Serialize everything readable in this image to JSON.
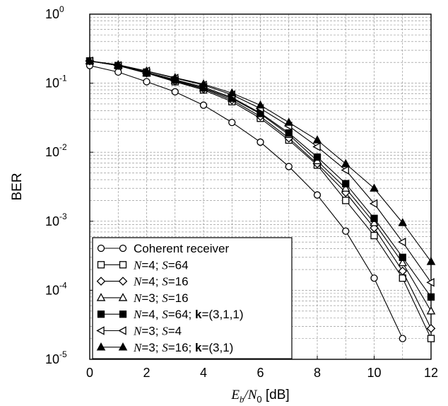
{
  "chart_data": {
    "type": "line",
    "title": "",
    "xlabel": {
      "main": "E",
      "sub1": "b",
      "sep": "/N",
      "sub2": "0",
      "unit": " [dB]"
    },
    "ylabel": "BER",
    "xlim": [
      0,
      12
    ],
    "ylim": [
      1e-05,
      1
    ],
    "yscale": "log",
    "grid": true,
    "legend_position": "bottom-left",
    "x_ticks": [
      "0",
      "2",
      "4",
      "6",
      "8",
      "10",
      "12"
    ],
    "y_ticks": [
      {
        "base": "10",
        "exp": "0"
      },
      {
        "base": "10",
        "exp": "-1"
      },
      {
        "base": "10",
        "exp": "-2"
      },
      {
        "base": "10",
        "exp": "-3"
      },
      {
        "base": "10",
        "exp": "-4"
      },
      {
        "base": "10",
        "exp": "-5"
      }
    ],
    "series": [
      {
        "name": [
          {
            "t": "Coherent receiver",
            "s": "n"
          }
        ],
        "marker": "circle",
        "fill": "open",
        "x": [
          0,
          1,
          2,
          3,
          4,
          5,
          6,
          7,
          8,
          9,
          10,
          11
        ],
        "values": [
          0.18,
          0.145,
          0.105,
          0.075,
          0.048,
          0.027,
          0.014,
          0.0062,
          0.0024,
          0.00072,
          0.00015,
          2e-05
        ]
      },
      {
        "name": [
          {
            "t": "N",
            "s": "i"
          },
          {
            "t": "=4; ",
            "s": "n"
          },
          {
            "t": "S",
            "s": "i"
          },
          {
            "t": "=64",
            "s": "n"
          }
        ],
        "marker": "square",
        "fill": "open",
        "x": [
          0,
          1,
          2,
          3,
          4,
          5,
          6,
          7,
          8,
          9,
          10,
          11,
          12
        ],
        "values": [
          0.21,
          0.18,
          0.14,
          0.105,
          0.08,
          0.054,
          0.031,
          0.015,
          0.0065,
          0.002,
          0.00062,
          0.00015,
          2e-05
        ]
      },
      {
        "name": [
          {
            "t": "N",
            "s": "i"
          },
          {
            "t": "=4; ",
            "s": "n"
          },
          {
            "t": "S",
            "s": "i"
          },
          {
            "t": "=16",
            "s": "n"
          }
        ],
        "marker": "diamond",
        "fill": "open",
        "x": [
          0,
          1,
          2,
          3,
          4,
          5,
          6,
          7,
          8,
          9,
          10,
          11,
          12
        ],
        "values": [
          0.21,
          0.18,
          0.14,
          0.107,
          0.083,
          0.057,
          0.033,
          0.016,
          0.0068,
          0.0026,
          0.0008,
          0.00019,
          2.8e-05
        ]
      },
      {
        "name": [
          {
            "t": "N",
            "s": "i"
          },
          {
            "t": "=3; ",
            "s": "n"
          },
          {
            "t": "S",
            "s": "i"
          },
          {
            "t": "=16",
            "s": "n"
          }
        ],
        "marker": "triangle-up",
        "fill": "open",
        "x": [
          0,
          1,
          2,
          3,
          4,
          5,
          6,
          7,
          8,
          9,
          10,
          11,
          12
        ],
        "values": [
          0.21,
          0.18,
          0.14,
          0.11,
          0.085,
          0.06,
          0.036,
          0.018,
          0.0075,
          0.003,
          0.00095,
          0.00025,
          5e-05
        ]
      },
      {
        "name": [
          {
            "t": "N",
            "s": "i"
          },
          {
            "t": "=4, ",
            "s": "n"
          },
          {
            "t": "S",
            "s": "i"
          },
          {
            "t": "=64; ",
            "s": "n"
          },
          {
            "t": "k",
            "s": "b"
          },
          {
            "t": "=(3,1,1)",
            "s": "n"
          }
        ],
        "marker": "square",
        "fill": "filled",
        "x": [
          0,
          1,
          2,
          3,
          4,
          5,
          6,
          7,
          8,
          9,
          10,
          11,
          12
        ],
        "values": [
          0.21,
          0.18,
          0.145,
          0.112,
          0.088,
          0.062,
          0.037,
          0.019,
          0.0085,
          0.0035,
          0.0011,
          0.0003,
          8e-05
        ]
      },
      {
        "name": [
          {
            "t": "N",
            "s": "i"
          },
          {
            "t": "=3; ",
            "s": "n"
          },
          {
            "t": "S",
            "s": "i"
          },
          {
            "t": "=4",
            "s": "n"
          }
        ],
        "marker": "triangle-left",
        "fill": "open",
        "x": [
          0,
          1,
          2,
          3,
          4,
          5,
          6,
          7,
          8,
          9,
          10,
          11,
          12
        ],
        "values": [
          0.21,
          0.18,
          0.15,
          0.118,
          0.094,
          0.068,
          0.043,
          0.024,
          0.012,
          0.0055,
          0.0018,
          0.0005,
          0.00013
        ]
      },
      {
        "name": [
          {
            "t": "N",
            "s": "i"
          },
          {
            "t": "=3; ",
            "s": "n"
          },
          {
            "t": "S",
            "s": "i"
          },
          {
            "t": "=16; ",
            "s": "n"
          },
          {
            "t": "k",
            "s": "b"
          },
          {
            "t": "=(3,1)",
            "s": "n"
          }
        ],
        "marker": "triangle-up",
        "fill": "filled",
        "x": [
          0,
          1,
          2,
          3,
          4,
          5,
          6,
          7,
          8,
          9,
          10,
          11,
          12
        ],
        "values": [
          0.21,
          0.185,
          0.15,
          0.12,
          0.097,
          0.072,
          0.048,
          0.027,
          0.015,
          0.0068,
          0.003,
          0.00095,
          0.00026
        ]
      }
    ]
  }
}
